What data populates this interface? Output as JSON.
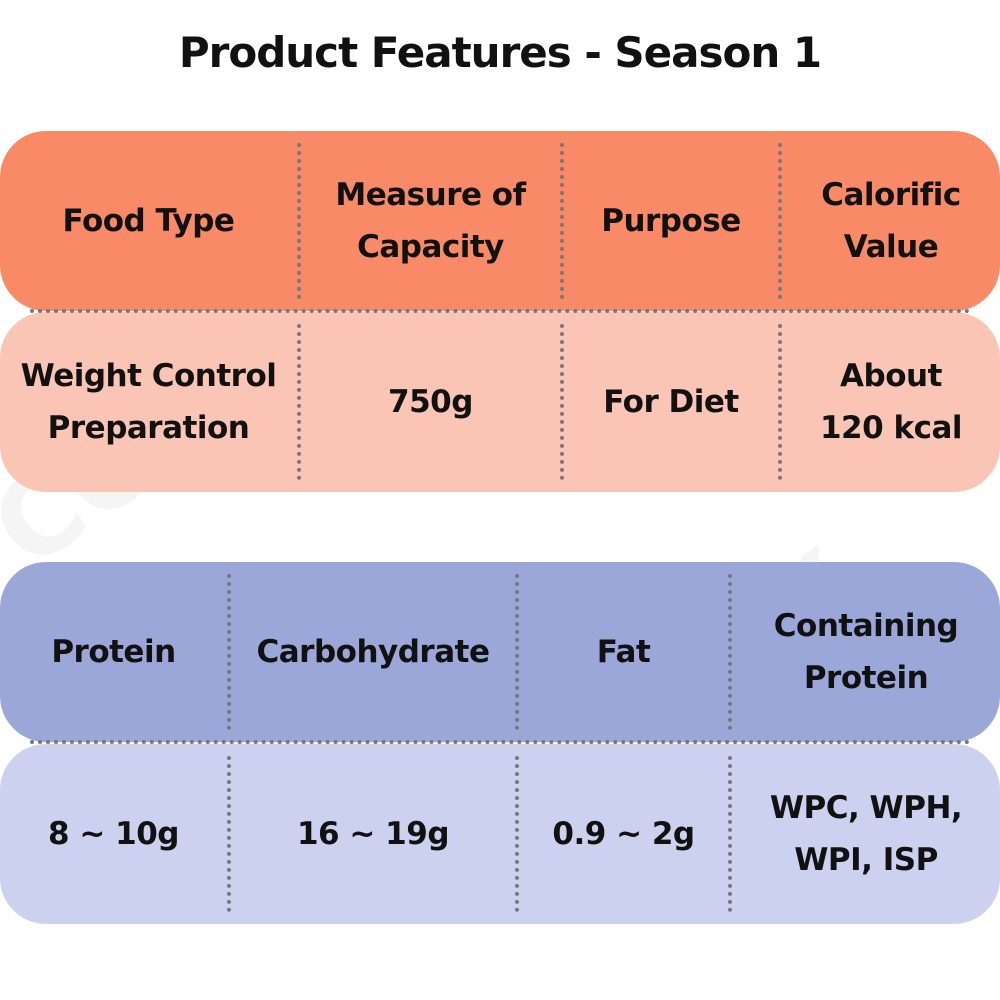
{
  "title": "Product Features - Season 1",
  "watermark": "COSBOX",
  "tables": [
    {
      "header": [
        "Food Type",
        "Measure of\nCapacity",
        "Purpose",
        "Calorific\nValue"
      ],
      "values": [
        "Weight Control\nPreparation",
        "750g",
        "For Diet",
        "About\n120 kcal"
      ]
    },
    {
      "header": [
        "Protein",
        "Carbohydrate",
        "Fat",
        "Containing\nProtein"
      ],
      "values": [
        "8 ~ 10g",
        "16 ~ 19g",
        "0.9 ~ 2g",
        "WPC, WPH,\nWPI, ISP"
      ]
    }
  ]
}
